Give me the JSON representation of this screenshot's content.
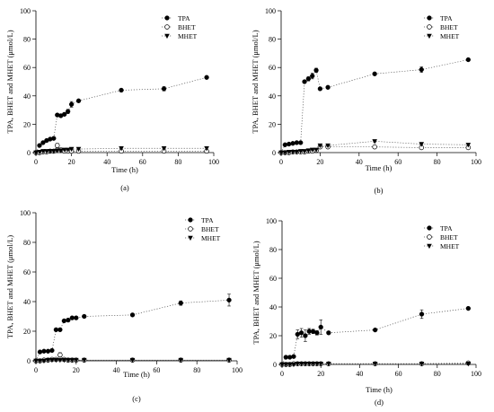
{
  "chart_data": [
    {
      "type": "scatter",
      "panel_label": "(a)",
      "xlabel": "Time (h)",
      "ylabel": "TPA, BHET and MHET (μmol/L)",
      "xlim": [
        0,
        100
      ],
      "ylim": [
        0,
        100
      ],
      "xticks": [
        0,
        20,
        40,
        60,
        80,
        100
      ],
      "yticks": [
        0,
        20,
        40,
        60,
        80,
        100
      ],
      "legend": "top-right",
      "series": [
        {
          "name": "TPA",
          "marker": "filled-circle",
          "x": [
            0,
            2,
            4,
            6,
            8,
            10,
            12,
            14,
            16,
            18,
            20,
            24,
            48,
            72,
            96
          ],
          "y": [
            0,
            5,
            7,
            8.5,
            9.5,
            10,
            26.5,
            26,
            27,
            29,
            34,
            36.5,
            44,
            45,
            53
          ],
          "err": [
            0,
            0.5,
            0.5,
            0.5,
            0.5,
            0.5,
            1,
            1,
            1,
            1.5,
            2,
            1,
            1,
            1.5,
            1
          ]
        },
        {
          "name": "BHET",
          "marker": "open-circle",
          "x": [
            0,
            2,
            4,
            6,
            8,
            10,
            12,
            14,
            16,
            18,
            20,
            24,
            48,
            72,
            96
          ],
          "y": [
            0,
            0,
            0.5,
            0.5,
            1,
            1,
            5,
            2,
            1,
            1,
            1,
            1,
            1,
            1,
            1
          ],
          "err": [
            0,
            0,
            0,
            0,
            0,
            0,
            1.5,
            0.5,
            0,
            0,
            0,
            0,
            0,
            0,
            0
          ]
        },
        {
          "name": "MHET",
          "marker": "filled-triangle-down",
          "x": [
            0,
            2,
            4,
            6,
            8,
            10,
            12,
            14,
            16,
            18,
            20,
            24,
            48,
            72,
            96
          ],
          "y": [
            0,
            0.5,
            1,
            1,
            1,
            1,
            1.5,
            1.5,
            2,
            2,
            2.5,
            2.5,
            3,
            3,
            3
          ],
          "err": [
            0,
            0,
            0,
            0,
            0,
            0,
            0,
            0,
            0,
            0,
            0,
            0,
            0,
            0,
            0
          ]
        }
      ]
    },
    {
      "type": "scatter",
      "panel_label": "(b)",
      "xlabel": "Time (h)",
      "ylabel": "TPA, BHET and MHET (μmol/L)",
      "xlim": [
        0,
        100
      ],
      "ylim": [
        0,
        100
      ],
      "xticks": [
        0,
        20,
        40,
        60,
        80,
        100
      ],
      "yticks": [
        0,
        20,
        40,
        60,
        80,
        100
      ],
      "legend": "top-right",
      "series": [
        {
          "name": "TPA",
          "marker": "filled-circle",
          "x": [
            0,
            2,
            4,
            6,
            8,
            10,
            12,
            14,
            16,
            18,
            20,
            24,
            48,
            72,
            96
          ],
          "y": [
            0,
            5.5,
            6,
            6.5,
            7,
            7,
            50,
            52,
            54,
            58,
            45,
            46,
            55.5,
            58.5,
            65.5
          ],
          "err": [
            0,
            0.5,
            0.5,
            0.5,
            0.5,
            0.5,
            1,
            1.5,
            2,
            1.5,
            1,
            1,
            1,
            2,
            1
          ]
        },
        {
          "name": "BHET",
          "marker": "open-circle",
          "x": [
            0,
            2,
            4,
            6,
            8,
            10,
            12,
            14,
            16,
            18,
            20,
            24,
            48,
            72,
            96
          ],
          "y": [
            0,
            0,
            0,
            0.5,
            0.5,
            0.5,
            0.5,
            1,
            1,
            1.5,
            4,
            4,
            4,
            3.5,
            3.5
          ],
          "err": [
            0,
            0,
            0,
            0,
            0,
            0,
            0,
            0,
            0,
            0,
            0.5,
            0.5,
            0.5,
            0.5,
            0.5
          ]
        },
        {
          "name": "MHET",
          "marker": "filled-triangle-down",
          "x": [
            0,
            2,
            4,
            6,
            8,
            10,
            12,
            14,
            16,
            18,
            20,
            24,
            48,
            72,
            96
          ],
          "y": [
            0,
            0,
            0.5,
            0.5,
            0.5,
            1,
            1,
            1.5,
            2,
            2,
            5,
            5,
            8,
            6,
            5.5
          ],
          "err": [
            0,
            0,
            0,
            0,
            0,
            0,
            0,
            0,
            0,
            0,
            0.5,
            0.5,
            0.5,
            0.5,
            0.5
          ]
        }
      ]
    },
    {
      "type": "scatter",
      "panel_label": "(c)",
      "xlabel": "Time (h)",
      "ylabel": "TPA, BHET and MHET (μmol/L)",
      "xlim": [
        0,
        100
      ],
      "ylim": [
        0,
        100
      ],
      "xticks": [
        0,
        20,
        40,
        60,
        80,
        100
      ],
      "yticks": [
        0,
        20,
        40,
        60,
        80,
        100
      ],
      "legend": "top-right",
      "series": [
        {
          "name": "TPA",
          "marker": "filled-circle",
          "x": [
            0,
            2,
            4,
            6,
            8,
            10,
            12,
            14,
            16,
            18,
            20,
            24,
            48,
            72,
            96
          ],
          "y": [
            0,
            6,
            6.5,
            6.5,
            7,
            21,
            21,
            27,
            27.5,
            29,
            29,
            30,
            31,
            39,
            41
          ],
          "err": [
            0,
            0.5,
            0.5,
            0.5,
            0.5,
            1,
            1,
            1,
            1,
            1,
            1,
            1,
            1,
            1.5,
            4
          ]
        },
        {
          "name": "BHET",
          "marker": "open-circle",
          "x": [
            0,
            2,
            4,
            6,
            8,
            10,
            12,
            14,
            16,
            18,
            20,
            24,
            48,
            72,
            96
          ],
          "y": [
            0,
            0,
            0.5,
            0.5,
            1,
            1,
            4,
            1,
            0.5,
            0.5,
            0.5,
            0.5,
            0.5,
            0.5,
            0.5
          ],
          "err": [
            0,
            0,
            0,
            0,
            0,
            0,
            1.5,
            0.5,
            0,
            0,
            0,
            0,
            0,
            0,
            0
          ]
        },
        {
          "name": "MHET",
          "marker": "filled-triangle-down",
          "x": [
            0,
            2,
            4,
            6,
            8,
            10,
            12,
            14,
            16,
            18,
            20,
            24,
            48,
            72,
            96
          ],
          "y": [
            0,
            0,
            0,
            0.5,
            0.5,
            0.5,
            0.5,
            0.5,
            0.5,
            0.5,
            0.5,
            0.5,
            0.5,
            0.5,
            0.5
          ],
          "err": [
            0,
            0,
            0,
            0,
            0,
            0,
            0,
            0,
            0,
            0,
            0,
            0,
            0,
            0,
            0
          ]
        }
      ]
    },
    {
      "type": "scatter",
      "panel_label": "(d)",
      "xlabel": "Time (h)",
      "ylabel": "TPA, BHET and MHET (μmol/L)",
      "xlim": [
        0,
        100
      ],
      "ylim": [
        0,
        100
      ],
      "xticks": [
        0,
        20,
        40,
        60,
        80,
        100
      ],
      "yticks": [
        0,
        20,
        40,
        60,
        80,
        100
      ],
      "legend": "top-right",
      "series": [
        {
          "name": "TPA",
          "marker": "filled-circle",
          "x": [
            0,
            2,
            4,
            6,
            8,
            10,
            12,
            14,
            16,
            18,
            20,
            24,
            48,
            72,
            96
          ],
          "y": [
            0,
            5,
            5,
            5.5,
            21,
            22,
            20,
            23,
            23,
            22,
            26,
            22,
            24,
            35,
            39
          ],
          "err": [
            0,
            0.5,
            0.5,
            0.5,
            3,
            3,
            4,
            2,
            1.5,
            1.5,
            5,
            1,
            1,
            3,
            1
          ]
        },
        {
          "name": "BHET",
          "marker": "open-circle",
          "x": [
            0,
            2,
            4,
            6,
            8,
            10,
            12,
            14,
            16,
            18,
            20,
            24,
            48,
            72,
            96
          ],
          "y": [
            0,
            0,
            0,
            0.5,
            0.5,
            0.5,
            0.5,
            0.5,
            0.5,
            0.5,
            0.5,
            0.5,
            0.5,
            0.5,
            1
          ],
          "err": [
            0,
            0,
            0,
            0,
            0,
            0,
            0,
            0,
            0,
            0,
            0,
            0,
            0,
            0,
            0
          ]
        },
        {
          "name": "MHET",
          "marker": "filled-triangle-down",
          "x": [
            0,
            2,
            4,
            6,
            8,
            10,
            12,
            14,
            16,
            18,
            20,
            24,
            48,
            72,
            96
          ],
          "y": [
            0,
            0,
            0,
            0,
            0.5,
            0.5,
            0.5,
            0.5,
            0.5,
            0.5,
            0.5,
            0.5,
            0.5,
            0.5,
            0.5
          ],
          "err": [
            0,
            0,
            0,
            0,
            0,
            0,
            0,
            0,
            0,
            0,
            0,
            0,
            0,
            0,
            0
          ]
        }
      ]
    }
  ]
}
